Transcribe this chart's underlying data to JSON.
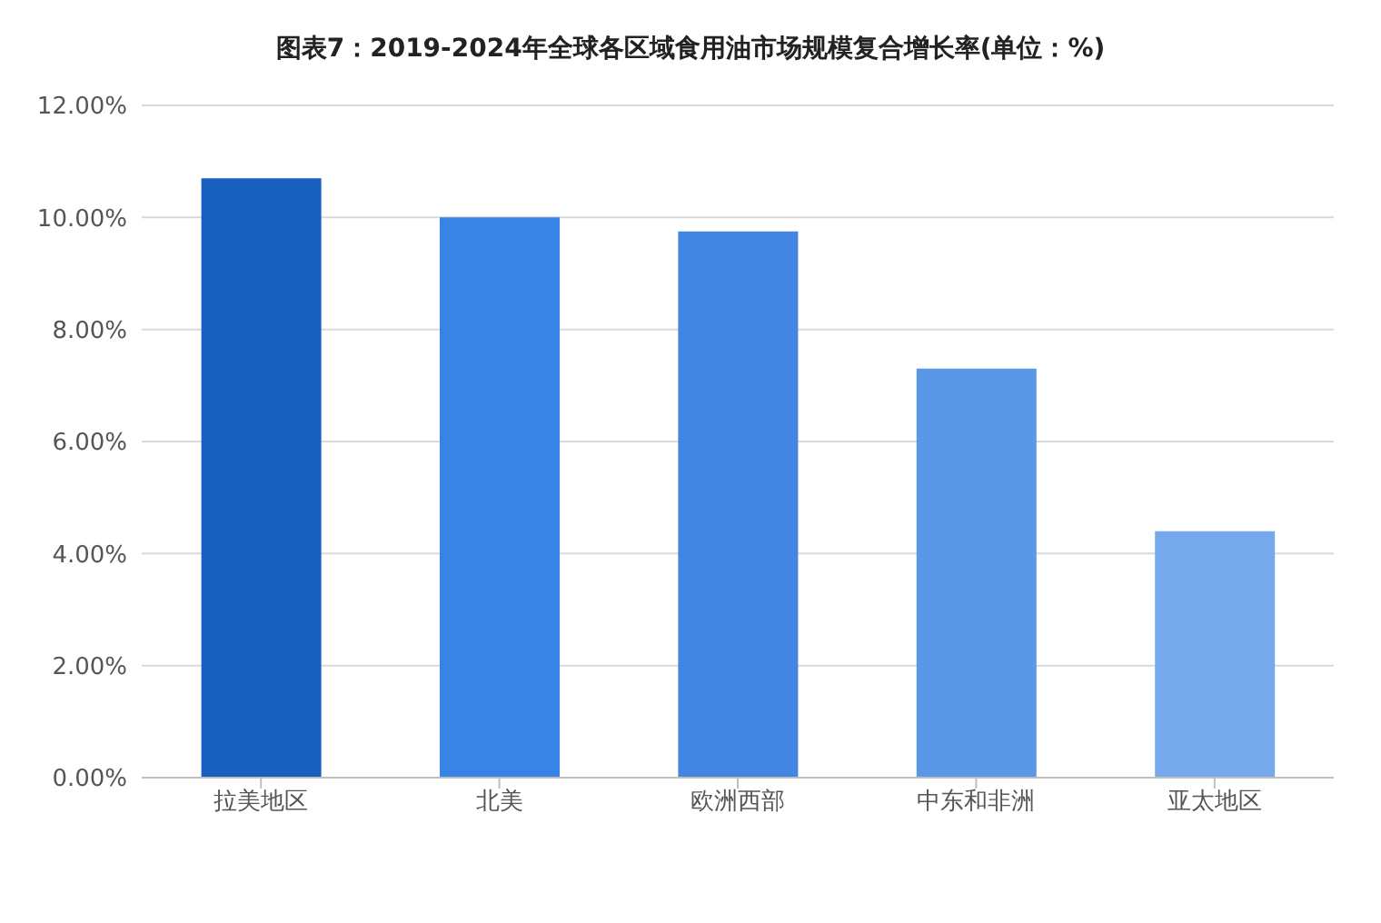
{
  "chart_data": {
    "type": "bar",
    "title": "图表7：2019-2024年全球各区域食用油市场规模复合增长率(单位：%)",
    "categories": [
      "拉美地区",
      "北美",
      "欧洲西部",
      "中东和非洲",
      "亚太地区"
    ],
    "values": [
      10.7,
      10.0,
      9.75,
      7.3,
      4.4
    ],
    "colors": [
      "#185fc0",
      "#3784e6",
      "#4286e2",
      "#5a97e6",
      "#76a9ec"
    ],
    "ylim": [
      0,
      12
    ],
    "yticks": [
      {
        "value": 0,
        "label": "0.00%"
      },
      {
        "value": 2,
        "label": "2.00%"
      },
      {
        "value": 4,
        "label": "4.00%"
      },
      {
        "value": 6,
        "label": "6.00%"
      },
      {
        "value": 8,
        "label": "8.00%"
      },
      {
        "value": 10,
        "label": "10.00%"
      },
      {
        "value": 12,
        "label": "12.00%"
      }
    ],
    "grid": "y"
  }
}
